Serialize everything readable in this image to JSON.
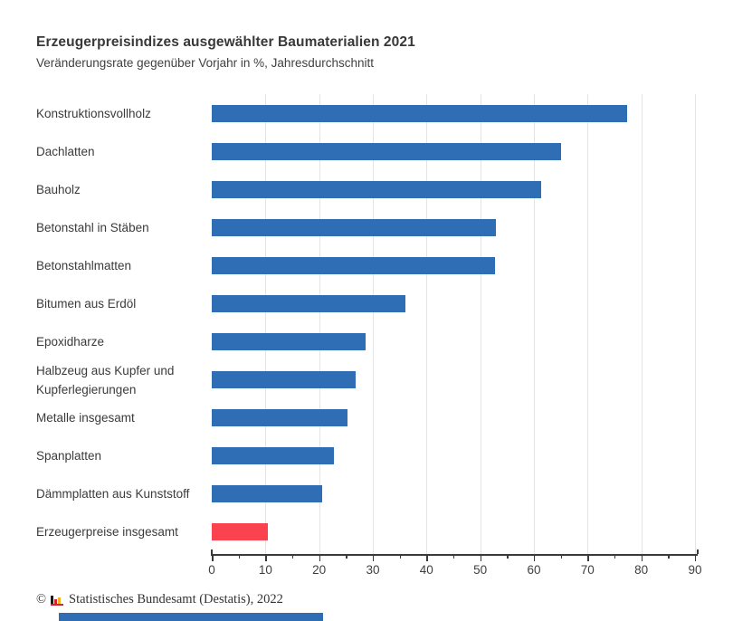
{
  "title": "Erzeugerpreisindizes ausgewählter Baumaterialien 2021",
  "subtitle": "Veränderungsrate gegenüber Vorjahr in %, Jahresdurchschnitt",
  "chart_data": {
    "type": "bar",
    "orientation": "horizontal",
    "unit": "%",
    "categories": [
      "Konstruktionsvollholz",
      "Dachlatten",
      "Bauholz",
      "Betonstahl in Stäben",
      "Betonstahlmatten",
      "Bitumen aus Erdöl",
      "Epoxidharze",
      "Halbzeug aus Kupfer und Kupferlegierungen",
      "Metalle insgesamt",
      "Spanplatten",
      "Dämmplatten aus Kunststoff",
      "Erzeugerpreise insgesamt"
    ],
    "values": [
      77.3,
      65.1,
      61.4,
      53.0,
      52.8,
      36.0,
      28.6,
      26.8,
      25.3,
      22.8,
      20.5,
      10.4
    ],
    "highlight_index": 11,
    "xlim": [
      0,
      90.3
    ],
    "x_ticks": [
      0,
      10,
      20,
      30,
      40,
      50,
      60,
      70,
      80,
      90
    ],
    "minor_tick_step": 5,
    "grid": "vertical-major",
    "legend": "none"
  },
  "colors": {
    "bar_blue": "#2f6eb4",
    "bar_red": "#fb4350",
    "gridline": "#e4e4e4",
    "axis": "#3a3a3a",
    "logo_black": "#1a1a1a",
    "logo_red": "#d5232e",
    "logo_gold": "#f0b323"
  },
  "footer": {
    "copyright": "©",
    "source": "Statistisches Bundesamt (Destatis), 2022",
    "logo": "destatis-mini-barchart-icon"
  }
}
